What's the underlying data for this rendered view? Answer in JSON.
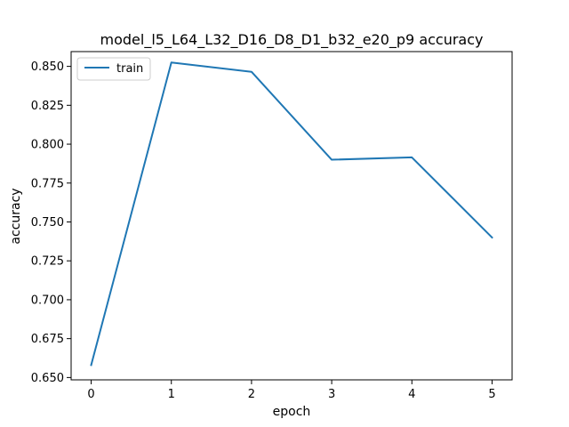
{
  "chart_data": {
    "type": "line",
    "title": "model_l5_L64_L32_D16_D8_D1_b32_e20_p9 accuracy",
    "xlabel": "epoch",
    "ylabel": "accuracy",
    "x": [
      0,
      1,
      2,
      3,
      4,
      5
    ],
    "x_ticks": [
      "0",
      "1",
      "2",
      "3",
      "4",
      "5"
    ],
    "y_ticks": [
      "0.650",
      "0.675",
      "0.700",
      "0.725",
      "0.750",
      "0.775",
      "0.800",
      "0.825",
      "0.850"
    ],
    "y_tick_values": [
      0.65,
      0.675,
      0.7,
      0.725,
      0.75,
      0.775,
      0.8,
      0.825,
      0.85
    ],
    "xlim": [
      -0.25,
      5.25
    ],
    "ylim": [
      0.6485,
      0.8595
    ],
    "grid": false,
    "legend_position": "upper-left",
    "series": [
      {
        "name": "train",
        "color": "#1f77b4",
        "values": [
          0.658,
          0.8525,
          0.8465,
          0.79,
          0.7915,
          0.74
        ]
      }
    ]
  }
}
